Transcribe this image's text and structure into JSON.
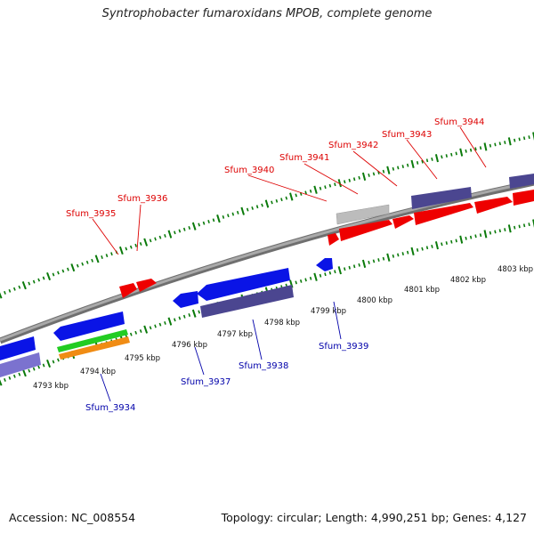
{
  "title": "Syntrophobacter fumaroxidans MPOB, complete genome",
  "footer": {
    "accession": "Accession: NC_008554",
    "summary": "Topology: circular; Length: 4,990,251 bp; Genes: 4,127"
  },
  "colors": {
    "backbone": "#8a8a8a",
    "tick": "#0a7a0a",
    "forward_label": "#dd0000",
    "reverse_label": "#0000aa",
    "gene_red": "#ee0000",
    "gene_blue": "#0a14e6",
    "gene_purple": "#4b4690",
    "gene_lavender": "#7b72cf",
    "gene_gray": "#bcbcbc",
    "gene_green": "#22cc22",
    "gene_orange": "#f08c14"
  },
  "tick_labels": [
    "4793 kbp",
    "4794 kbp",
    "4795 kbp",
    "4796 kbp",
    "4797 kbp",
    "4798 kbp",
    "4799 kbp",
    "4800 kbp",
    "4801 kbp",
    "4802 kbp",
    "4803 kbp"
  ],
  "forward_genes": [
    "Sfum_3935",
    "Sfum_3936",
    "Sfum_3940",
    "Sfum_3941",
    "Sfum_3942",
    "Sfum_3943",
    "Sfum_3944"
  ],
  "reverse_genes": [
    "Sfum_3934",
    "Sfum_3937",
    "Sfum_3938",
    "Sfum_3939"
  ]
}
